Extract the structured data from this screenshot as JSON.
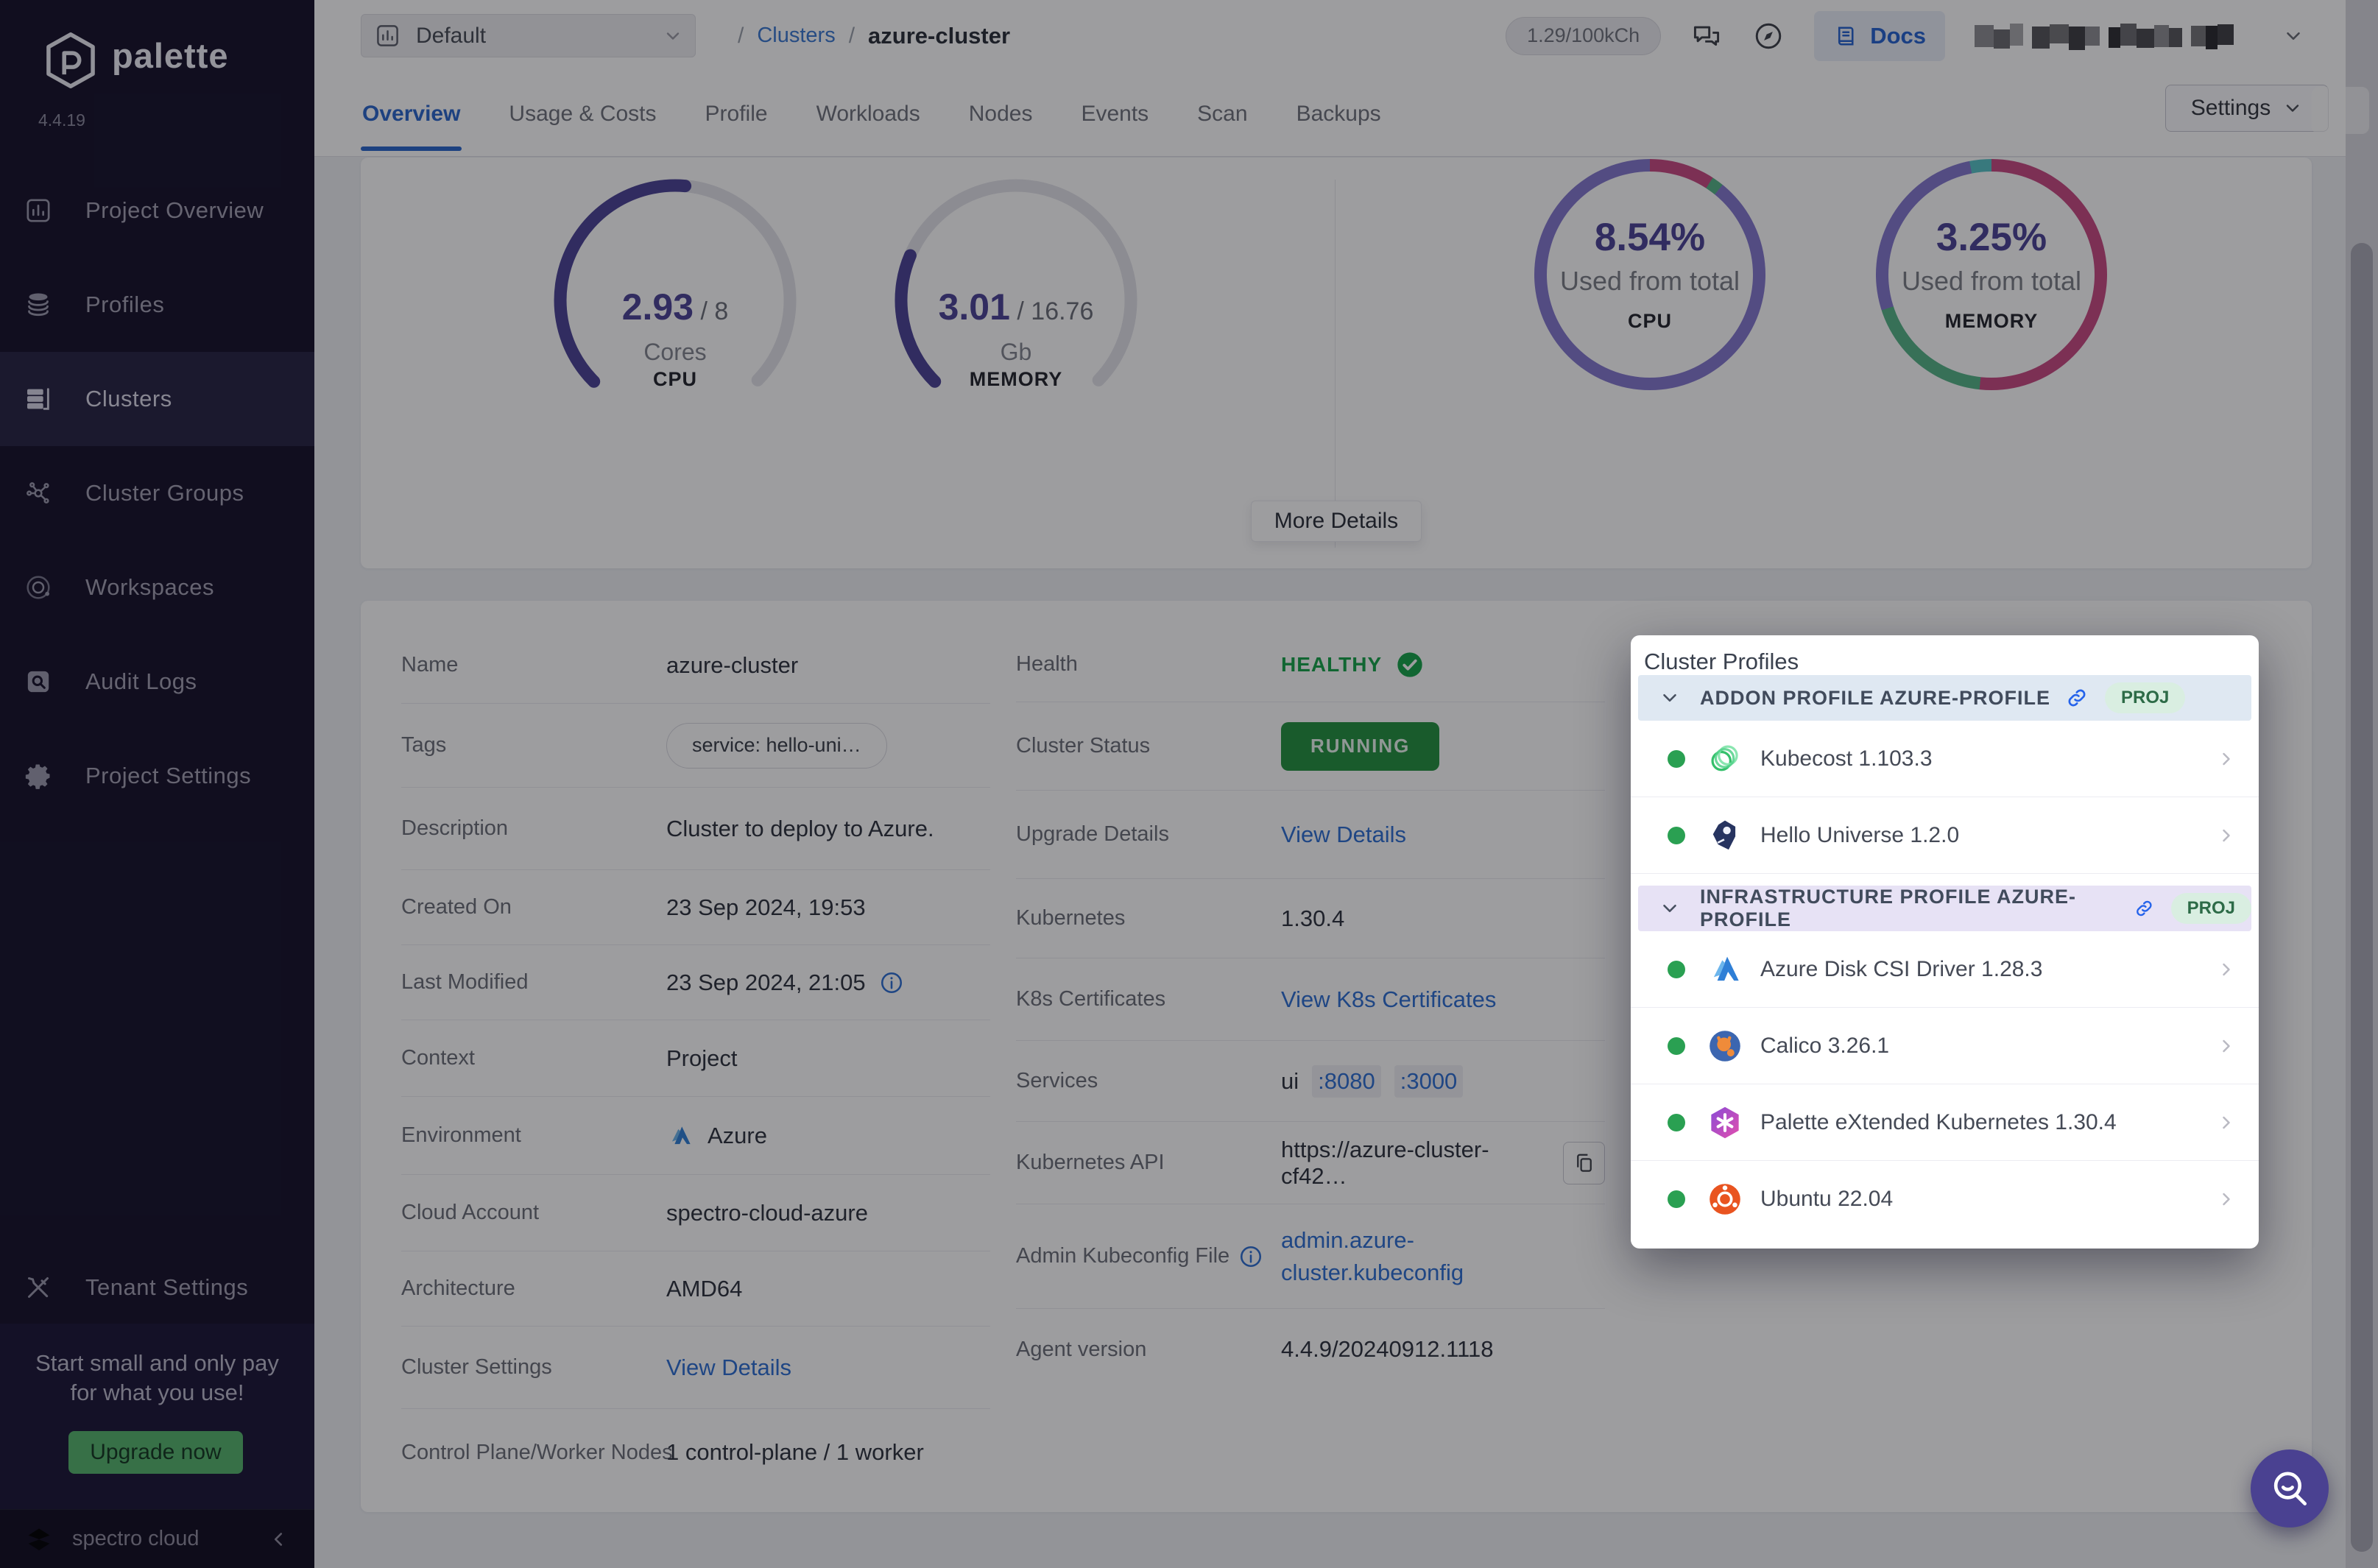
{
  "app": {
    "name": "palette",
    "version": "4.4.19"
  },
  "sidebar": {
    "items": [
      {
        "id": "project-overview",
        "label": "Project Overview",
        "icon": "bar-chart",
        "active": false
      },
      {
        "id": "profiles",
        "label": "Profiles",
        "icon": "layers",
        "active": false
      },
      {
        "id": "clusters",
        "label": "Clusters",
        "icon": "server",
        "active": true
      },
      {
        "id": "cluster-groups",
        "label": "Cluster Groups",
        "icon": "network",
        "active": false
      },
      {
        "id": "workspaces",
        "label": "Workspaces",
        "icon": "orbit",
        "active": false
      },
      {
        "id": "audit-logs",
        "label": "Audit Logs",
        "icon": "audit",
        "active": false
      },
      {
        "id": "project-settings",
        "label": "Project Settings",
        "icon": "gear",
        "active": false
      }
    ],
    "tenant": {
      "id": "tenant-settings",
      "label": "Tenant Settings",
      "icon": "tools",
      "active": false
    },
    "upgrade": {
      "message_line1": "Start small and only pay",
      "message_line2": "for what you use!",
      "button": "Upgrade now"
    },
    "footer": {
      "brand": "spectro cloud"
    }
  },
  "topbar": {
    "project_selector": {
      "label": "Default",
      "icon": "bar-chart"
    },
    "breadcrumb": {
      "separator": "/",
      "root": "Clusters",
      "current": "azure-cluster"
    },
    "credits": "1.29/100kCh",
    "docs_label": "Docs"
  },
  "tabs": {
    "items": [
      "Overview",
      "Usage & Costs",
      "Profile",
      "Workloads",
      "Nodes",
      "Events",
      "Scan",
      "Backups"
    ],
    "active": "Overview",
    "settings_button": "Settings"
  },
  "metrics": {
    "gauges": [
      {
        "id": "cpu",
        "value": "2.93",
        "total": "8",
        "unit": "Cores",
        "caption": "CPU",
        "sweep_deg": 140,
        "color": "#4c4496",
        "track": "#e3e3ea"
      },
      {
        "id": "memory",
        "value": "3.01",
        "total": "16.76",
        "unit": "Gb",
        "caption": "MEMORY",
        "sweep_deg": 68,
        "color": "#4c4496",
        "track": "#e3e3ea"
      }
    ],
    "donuts": [
      {
        "id": "cpu",
        "pct": "8.54%",
        "sub": "Used from total",
        "caption": "CPU",
        "segments": [
          {
            "color": "#c84a82",
            "from": 0,
            "to": 33
          },
          {
            "color": "#56b488",
            "from": 33,
            "to": 39
          },
          {
            "color": "#8478cf",
            "from": 39,
            "to": 360
          }
        ]
      },
      {
        "id": "memory",
        "pct": "3.25%",
        "sub": "Used from total",
        "caption": "MEMORY",
        "segments": [
          {
            "color": "#c84a82",
            "from": 0,
            "to": 186
          },
          {
            "color": "#56b488",
            "from": 186,
            "to": 252
          },
          {
            "color": "#8478cf",
            "from": 252,
            "to": 349
          },
          {
            "color": "#57c3c6",
            "from": 349,
            "to": 360
          }
        ]
      }
    ],
    "more_details": "More Details"
  },
  "details": {
    "left": [
      {
        "label": "Name",
        "value": "azure-cluster"
      },
      {
        "label": "Tags",
        "value": "service: hello-uni…"
      },
      {
        "label": "Description",
        "value": "Cluster to deploy to Azure."
      },
      {
        "label": "Created On",
        "value": "23 Sep 2024, 19:53"
      },
      {
        "label": "Last Modified",
        "value": "23 Sep 2024, 21:05"
      },
      {
        "label": "Context",
        "value": "Project"
      },
      {
        "label": "Environment",
        "value": "Azure"
      },
      {
        "label": "Cloud Account",
        "value": "spectro-cloud-azure"
      },
      {
        "label": "Architecture",
        "value": "AMD64"
      },
      {
        "label": "Cluster Settings",
        "value": "View Details"
      },
      {
        "label": "Control Plane/Worker Nodes",
        "value": "1 control-plane / 1 worker"
      }
    ],
    "right": [
      {
        "label": "Health",
        "value": "HEALTHY"
      },
      {
        "label": "Cluster Status",
        "value": "RUNNING"
      },
      {
        "label": "Upgrade Details",
        "value": "View Details"
      },
      {
        "label": "Kubernetes",
        "value": "1.30.4"
      },
      {
        "label": "K8s Certificates",
        "value": "View K8s Certificates"
      },
      {
        "label": "Services",
        "value": "ui",
        "links": [
          ":8080",
          ":3000"
        ]
      },
      {
        "label": "Kubernetes API",
        "value": "https://azure-cluster-cf42…"
      },
      {
        "label": "Admin Kubeconfig File",
        "value": "admin.azure-cluster.kubeconfig"
      },
      {
        "label": "Agent version",
        "value": "4.4.9/20240912.1118"
      }
    ]
  },
  "popup": {
    "title": "Cluster Profiles",
    "badge_label": "PROJ",
    "sections": [
      {
        "id": "addon",
        "label": "ADDON PROFILE AZURE-PROFILE",
        "tint": "blue",
        "items": [
          {
            "name": "Kubecost 1.103.3",
            "logo": "kubecost"
          },
          {
            "name": "Hello Universe 1.2.0",
            "logo": "hello-universe"
          }
        ]
      },
      {
        "id": "infrastructure",
        "label": "INFRASTRUCTURE PROFILE AZURE-PROFILE",
        "tint": "purple",
        "items": [
          {
            "name": "Azure Disk CSI Driver 1.28.3",
            "logo": "azure"
          },
          {
            "name": "Calico 3.26.1",
            "logo": "calico"
          },
          {
            "name": "Palette eXtended Kubernetes 1.30.4",
            "logo": "pxk"
          },
          {
            "name": "Ubuntu 22.04",
            "logo": "ubuntu"
          }
        ]
      }
    ]
  },
  "colors": {
    "accent_blue": "#2e6fd2",
    "sidebar_bg": "#16122b",
    "healthy_green": "#16a34a",
    "running_green": "#239140",
    "gauge_purple": "#4c4496",
    "fab_purple": "#4a4191"
  }
}
